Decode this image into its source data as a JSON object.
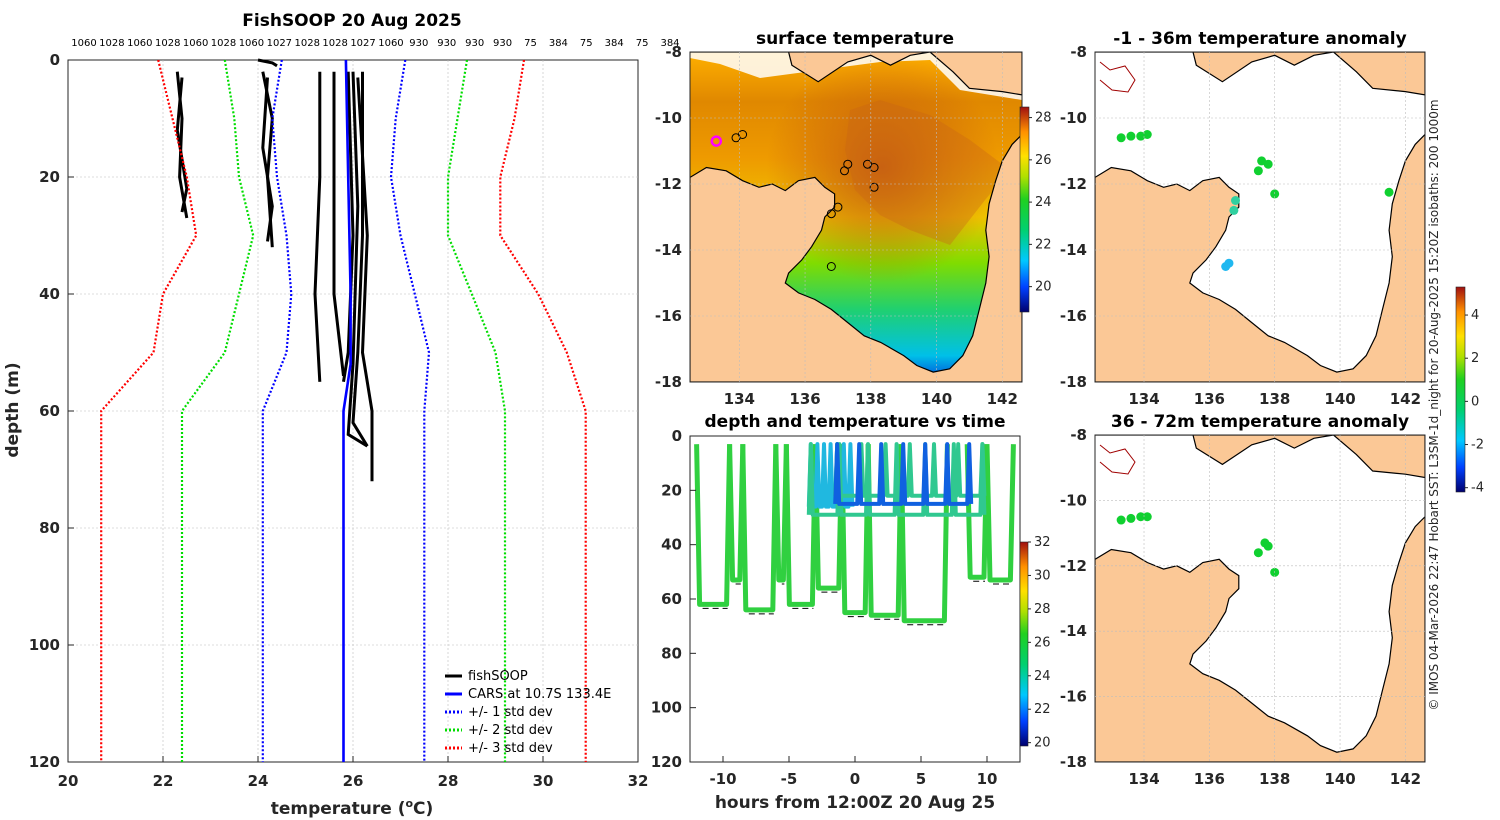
{
  "chart_data": [
    {
      "type": "line",
      "title": "FishSOOP 20 Aug 2025",
      "xlabel": "temperature (",
      "xlabel_sup": "o",
      "xlabel_tail": "C)",
      "ylabel": "depth (m)",
      "xlim": [
        20,
        32
      ],
      "ylim": [
        120,
        0
      ],
      "xticks": [
        "20",
        "22",
        "24",
        "26",
        "28",
        "30",
        "32"
      ],
      "yticks": [
        "0",
        "20",
        "40",
        "60",
        "80",
        "100",
        "120"
      ],
      "pressure_ticks": [
        "1060",
        "1028",
        "1060",
        "1028",
        "1060",
        "1028",
        "1060",
        "1027",
        "1028",
        "1028",
        "1027",
        "1060",
        "930",
        "930",
        "930",
        "930",
        "75",
        "384",
        "75",
        "384",
        "75",
        "384"
      ],
      "series": [
        {
          "name": "fishSOOP",
          "color": "#000000",
          "style": "solid",
          "profiles": [
            [
              [
                22.3,
                2
              ],
              [
                22.4,
                10
              ],
              [
                22.35,
                20
              ],
              [
                22.5,
                27
              ]
            ],
            [
              [
                22.4,
                3
              ],
              [
                22.3,
                12
              ],
              [
                22.5,
                22
              ],
              [
                22.4,
                26
              ]
            ],
            [
              [
                24.0,
                0
              ],
              [
                24.3,
                0.5
              ],
              [
                24.4,
                1
              ]
            ],
            [
              [
                24.1,
                2
              ],
              [
                24.3,
                10
              ],
              [
                24.2,
                20
              ],
              [
                24.3,
                32
              ]
            ],
            [
              [
                24.2,
                3
              ],
              [
                24.1,
                15
              ],
              [
                24.3,
                25
              ],
              [
                24.2,
                31
              ]
            ],
            [
              [
                25.3,
                2
              ],
              [
                25.3,
                20
              ],
              [
                25.2,
                40
              ],
              [
                25.3,
                55
              ]
            ],
            [
              [
                25.6,
                2
              ],
              [
                25.6,
                20
              ],
              [
                25.6,
                40
              ],
              [
                25.8,
                54
              ]
            ],
            [
              [
                25.9,
                2
              ],
              [
                26.0,
                30
              ],
              [
                25.9,
                50
              ],
              [
                25.8,
                55
              ]
            ],
            [
              [
                26.2,
                2
              ],
              [
                26.2,
                30
              ],
              [
                26.1,
                50
              ],
              [
                26.0,
                62
              ],
              [
                26.3,
                66
              ]
            ],
            [
              [
                26.1,
                3
              ],
              [
                26.3,
                30
              ],
              [
                26.2,
                50
              ],
              [
                26.4,
                60
              ],
              [
                26.4,
                72
              ]
            ],
            [
              [
                26.0,
                2
              ],
              [
                26.1,
                25
              ],
              [
                26.0,
                52
              ],
              [
                25.9,
                64
              ],
              [
                26.3,
                66
              ]
            ]
          ]
        },
        {
          "name": "CARS at 10.7S 133.4E",
          "color": "#0000ff",
          "style": "solid",
          "points": [
            [
              25.85,
              0
            ],
            [
              25.9,
              20
            ],
            [
              25.95,
              40
            ],
            [
              25.95,
              52
            ],
            [
              25.8,
              60
            ],
            [
              25.8,
              120
            ]
          ]
        },
        {
          "name": "+/- 1 std dev",
          "color": "#0000ff",
          "style": "dotted",
          "left": [
            [
              24.5,
              0
            ],
            [
              24.3,
              10
            ],
            [
              24.4,
              20
            ],
            [
              24.6,
              30
            ],
            [
              24.7,
              40
            ],
            [
              24.6,
              50
            ],
            [
              24.1,
              60
            ],
            [
              24.1,
              120
            ]
          ],
          "right": [
            [
              27.1,
              0
            ],
            [
              26.9,
              10
            ],
            [
              26.8,
              20
            ],
            [
              27.0,
              30
            ],
            [
              27.3,
              40
            ],
            [
              27.6,
              50
            ],
            [
              27.5,
              60
            ],
            [
              27.5,
              120
            ]
          ]
        },
        {
          "name": "+/- 2 std dev",
          "color": "#00dd00",
          "style": "dotted",
          "left": [
            [
              23.3,
              0
            ],
            [
              23.5,
              10
            ],
            [
              23.6,
              20
            ],
            [
              23.9,
              30
            ],
            [
              23.6,
              40
            ],
            [
              23.3,
              50
            ],
            [
              22.4,
              60
            ],
            [
              22.4,
              120
            ]
          ],
          "right": [
            [
              28.4,
              0
            ],
            [
              28.2,
              10
            ],
            [
              28.0,
              20
            ],
            [
              28.0,
              30
            ],
            [
              28.5,
              40
            ],
            [
              29.0,
              50
            ],
            [
              29.2,
              60
            ],
            [
              29.2,
              120
            ]
          ]
        },
        {
          "name": "+/- 3 std dev",
          "color": "#ff0000",
          "style": "dotted",
          "left": [
            [
              21.9,
              0
            ],
            [
              22.2,
              10
            ],
            [
              22.5,
              20
            ],
            [
              22.7,
              30
            ],
            [
              22.0,
              40
            ],
            [
              21.8,
              50
            ],
            [
              20.7,
              60
            ],
            [
              20.7,
              120
            ]
          ],
          "right": [
            [
              29.6,
              0
            ],
            [
              29.4,
              10
            ],
            [
              29.1,
              20
            ],
            [
              29.1,
              30
            ],
            [
              29.9,
              40
            ],
            [
              30.5,
              50
            ],
            [
              30.9,
              60
            ],
            [
              30.9,
              120
            ]
          ]
        }
      ]
    },
    {
      "type": "heatmap",
      "title": "surface temperature",
      "xlim": [
        132.5,
        142.6
      ],
      "ylim": [
        -18,
        -8
      ],
      "xticks": [
        "134",
        "136",
        "138",
        "140",
        "142"
      ],
      "yticks": [
        "-8",
        "-10",
        "-12",
        "-14",
        "-16",
        "-18"
      ],
      "colorbar": {
        "min": 18.8,
        "max": 28.5,
        "ticks": [
          "28",
          "26",
          "24",
          "22",
          "20"
        ]
      },
      "stations": [
        [
          133.9,
          -10.6
        ],
        [
          134.1,
          -10.5
        ],
        [
          137.3,
          -11.4
        ],
        [
          137.2,
          -11.6
        ],
        [
          137.9,
          -11.4
        ],
        [
          138.1,
          -11.5
        ],
        [
          138.1,
          -12.1
        ],
        [
          137.0,
          -12.7
        ],
        [
          136.8,
          -12.9
        ],
        [
          136.8,
          -14.5
        ]
      ],
      "current_position": [
        133.3,
        -10.7
      ]
    },
    {
      "type": "scatter",
      "title": "depth and temperature vs time",
      "xlabel": "hours from 12:00Z 20 Aug 25",
      "xlim": [
        -12.5,
        12.5
      ],
      "ylim": [
        120,
        0
      ],
      "xticks": [
        "-10",
        "-5",
        "0",
        "5",
        "10"
      ],
      "yticks": [
        "0",
        "20",
        "40",
        "60",
        "80",
        "100",
        "120"
      ],
      "colorbar": {
        "min": 19.8,
        "max": 32,
        "ticks": [
          "32",
          "30",
          "28",
          "26",
          "24",
          "22",
          "20"
        ]
      },
      "dives": [
        {
          "t0": -12,
          "t1": -9.5,
          "depth": 62,
          "temp": 26
        },
        {
          "t0": -9.5,
          "t1": -8.5,
          "depth": 53,
          "temp": 26
        },
        {
          "t0": -8.5,
          "t1": -6.0,
          "depth": 64,
          "temp": 26
        },
        {
          "t0": -6.0,
          "t1": -5.2,
          "depth": 53,
          "temp": 26
        },
        {
          "t0": -5.2,
          "t1": -3.0,
          "depth": 62,
          "temp": 26
        },
        {
          "t0": -3.0,
          "t1": -1.0,
          "depth": 56,
          "temp": 26
        },
        {
          "t0": -1.0,
          "t1": 1.0,
          "depth": 65,
          "temp": 26
        },
        {
          "t0": 1.0,
          "t1": 3.5,
          "depth": 66,
          "temp": 26
        },
        {
          "t0": 3.5,
          "t1": 7.0,
          "depth": 68,
          "temp": 25.5
        },
        {
          "t0": 8.5,
          "t1": 10.0,
          "depth": 52,
          "temp": 26
        },
        {
          "t0": 10.0,
          "t1": 12.0,
          "depth": 53,
          "temp": 26
        }
      ],
      "shallow_dives": [
        {
          "t0": -3.5,
          "t1": -0.5,
          "depth": 26,
          "temp": 22.5
        },
        {
          "t0": -3.5,
          "t1": 9.5,
          "depth": 29,
          "temp": 23.5
        },
        {
          "t0": -1.5,
          "t1": 9.5,
          "depth": 22,
          "temp": 23.5
        },
        {
          "t0": -1.5,
          "t1": 8.5,
          "depth": 25,
          "temp": 22
        }
      ]
    },
    {
      "type": "scatter",
      "title": "-1 - 36m temperature anomaly",
      "xlim": [
        132.5,
        142.6
      ],
      "ylim": [
        -18,
        -8
      ],
      "xticks": [
        "134",
        "136",
        "138",
        "140",
        "142"
      ],
      "yticks": [
        "-8",
        "-10",
        "-12",
        "-14",
        "-16",
        "-18"
      ],
      "colorbar": {
        "min": -4.2,
        "max": 5.3,
        "ticks": [
          "4",
          "2",
          "0",
          "-2",
          "-4"
        ]
      },
      "points": [
        [
          133.3,
          -10.6,
          0.2
        ],
        [
          133.6,
          -10.55,
          0.2
        ],
        [
          133.9,
          -10.55,
          0.2
        ],
        [
          134.1,
          -10.5,
          0.2
        ],
        [
          136.8,
          -12.5,
          -1.5
        ],
        [
          136.75,
          -12.8,
          -1.5
        ],
        [
          136.5,
          -14.5,
          -2
        ],
        [
          136.6,
          -14.4,
          -2
        ],
        [
          137.6,
          -11.3,
          0.2
        ],
        [
          137.5,
          -11.6,
          0.2
        ],
        [
          137.8,
          -11.4,
          0.2
        ],
        [
          138.0,
          -12.3,
          0.2
        ],
        [
          141.5,
          -12.25,
          0.2
        ]
      ]
    },
    {
      "type": "scatter",
      "title": "36 - 72m temperature anomaly",
      "xlim": [
        132.5,
        142.6
      ],
      "ylim": [
        -18,
        -8
      ],
      "xticks": [
        "134",
        "136",
        "138",
        "140",
        "142"
      ],
      "yticks": [
        "-8",
        "-10",
        "-12",
        "-14",
        "-16",
        "-18"
      ],
      "points": [
        [
          133.3,
          -10.6,
          0.2
        ],
        [
          133.6,
          -10.55,
          0.2
        ],
        [
          133.9,
          -10.5,
          0.2
        ],
        [
          134.1,
          -10.5,
          0.2
        ],
        [
          137.5,
          -11.6,
          0.2
        ],
        [
          137.7,
          -11.3,
          0.2
        ],
        [
          137.8,
          -11.4,
          0.2
        ],
        [
          138.0,
          -12.2,
          0.2
        ]
      ]
    }
  ],
  "credit": "© IMOS 04-Mar-2026 22:47 Hobart SST: L3SM-1d_night for 20-Aug-2025 15:20Z isobaths: 200  1000m"
}
